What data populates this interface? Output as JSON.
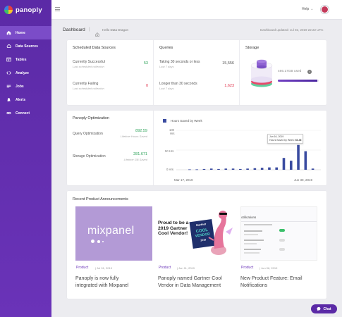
{
  "brand": {
    "logo_text": "panoply"
  },
  "sidebar": {
    "items": [
      {
        "label": "Home",
        "icon": "home-icon"
      },
      {
        "label": "Data Sources",
        "icon": "cloud-icon"
      },
      {
        "label": "Tables",
        "icon": "table-icon"
      },
      {
        "label": "Analyze",
        "icon": "code-icon"
      },
      {
        "label": "Jobs",
        "icon": "jobs-icon"
      },
      {
        "label": "Alerts",
        "icon": "bell-icon"
      },
      {
        "label": "Connect",
        "icon": "connect-icon"
      }
    ]
  },
  "topbar": {
    "help_label": "Help",
    "help_chevron": "⌄"
  },
  "breadcrumb": {
    "title": "Dashboard",
    "separator": "|",
    "user": "Hello Data Dragon",
    "updated": "Dashboard updated: Jul 02, 2019 22:22 UTC"
  },
  "scheduled": {
    "title": "Scheduled Data Sources",
    "successful_label": "Currently Successful",
    "successful_sub": "Last scheduled collection",
    "successful_value": "53",
    "failing_label": "Currently Failing",
    "failing_sub": "Last scheduled collection",
    "failing_value": "0"
  },
  "queries": {
    "title": "Queries",
    "fast_label": "Taking 30 seconds or less",
    "fast_sub": "Last 7 days",
    "fast_value": "15,556",
    "slow_label": "Longer than 30 seconds",
    "slow_sub": "Last 7 days",
    "slow_value": "1,623"
  },
  "storage": {
    "title": "Storage",
    "used": "466.17GB used",
    "info": "i",
    "used_fraction": 0.97
  },
  "optimization": {
    "title": "Panoply Optimization",
    "query_label": "Query Optimization",
    "query_value": "892.59",
    "query_sub": "Lifetime Hours Saved",
    "storage_label": "Storage Optimization",
    "storage_value": "281.671",
    "storage_sub": "Lifetime GB Saved"
  },
  "chart_data": {
    "type": "bar",
    "legend": "Hours Saved by Week",
    "y_ticks": [
      {
        "value": 100,
        "label": "100",
        "unit": "Hrs"
      },
      {
        "value": 50,
        "label": "50 Hrs",
        "unit": ""
      },
      {
        "value": 0,
        "label": "0 Hrs",
        "unit": ""
      }
    ],
    "ylim": [
      0,
      100
    ],
    "x_start_label": "Mar 17, 2019",
    "x_end_label": "Jun 30, 2019",
    "values": [
      1,
      1,
      2,
      3,
      2,
      3,
      3,
      2,
      3,
      4,
      5,
      6,
      6,
      30,
      23,
      63,
      47,
      3
    ],
    "tooltip": {
      "date": "Jun 16, 2019",
      "text": "Hours Saved by Week:",
      "value": "63.46"
    },
    "colors": {
      "bar": "#3a4ba0"
    }
  },
  "announcements": {
    "title": "Recent Product Announcements",
    "items": [
      {
        "tag": "Product",
        "date": "Jul 01, 2019",
        "title_line1": "Panoply is now fully",
        "title_line2": "integrated with Mixpanel",
        "thumb_text": "mixpanel"
      },
      {
        "tag": "Product",
        "date": "Jun 11, 2019",
        "title_line1": "Panoply named Gartner Cool",
        "title_line2": "Vendor in Data Management",
        "thumb_lines": [
          "Proud to be a",
          "2019 Gartner",
          "Cool Vendor!"
        ],
        "badge_top": "Gartner",
        "badge_lines": [
          "COOL",
          "VENDOR",
          "2019"
        ]
      },
      {
        "tag": "Product",
        "date": "Jun 06, 2019",
        "title_line1": "New Product Feature: Email",
        "title_line2": "Notifications",
        "thumb_text": "otifications"
      }
    ]
  },
  "chat": {
    "label": "Chat"
  },
  "colors": {
    "purple": "#5b2aa6",
    "green": "#2ea35a",
    "red": "#e0334c",
    "bar": "#3a4ba0"
  }
}
